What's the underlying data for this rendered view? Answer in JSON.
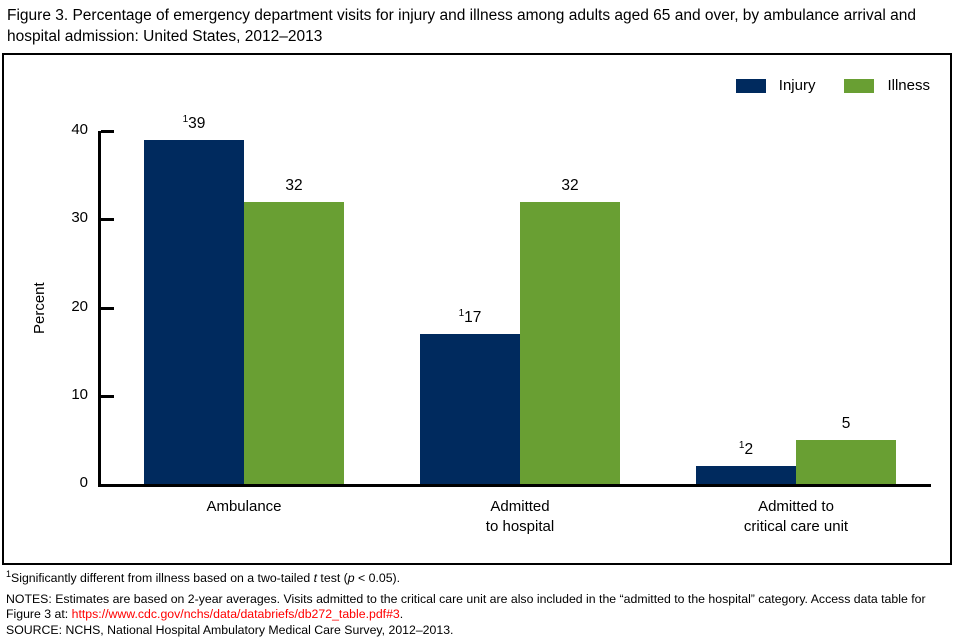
{
  "title": "Figure 3. Percentage of emergency department visits for injury and illness among adults aged 65 and over, by ambulance arrival and hospital admission: United States, 2012–2013",
  "chart_data": {
    "type": "bar",
    "title": "Figure 3. Percentage of emergency department visits for injury and illness among adults aged 65 and over, by ambulance arrival and hospital admission: United States, 2012–2013",
    "categories": [
      "Ambulance",
      "Admitted to hospital",
      "Admitted to critical care unit"
    ],
    "category_label_lines": [
      [
        "Ambulance"
      ],
      [
        "Admitted",
        "to hospital"
      ],
      [
        "Admitted to",
        "critical care unit"
      ]
    ],
    "series": [
      {
        "name": "Injury",
        "color": "#002a5e",
        "values": [
          39,
          17,
          2
        ],
        "value_superscripts": [
          "1",
          "1",
          "1"
        ]
      },
      {
        "name": "Illness",
        "color": "#699f33",
        "values": [
          32,
          32,
          5
        ],
        "value_superscripts": [
          "",
          "",
          ""
        ]
      }
    ],
    "xlabel": "",
    "ylabel": "Percent",
    "ylim": [
      0,
      40
    ],
    "yticks": [
      0,
      10,
      20,
      30,
      40
    ],
    "grid": false,
    "legend_position": "top-right"
  },
  "footnotes": {
    "footnote1": {
      "sup": "1",
      "parts": [
        {
          "text": "Significantly different from illness based on a two-tailed ",
          "italic": false
        },
        {
          "text": "t",
          "italic": true
        },
        {
          "text": " test (",
          "italic": false
        },
        {
          "text": "p",
          "italic": true
        },
        {
          "text": " < 0.05).",
          "italic": false
        }
      ]
    },
    "notes": {
      "before_link": "NOTES: Estimates are based on 2-year averages. Visits admitted to the critical care unit are also included in the “admitted to the hospital” category. Access data table for Figure 3 at: ",
      "link": "https://www.cdc.gov/nchs/data/databriefs/db272_table.pdf#3",
      "after_link": ".",
      "link_color": "#ff0000"
    },
    "source": "SOURCE: NCHS, National Hospital Ambulatory Medical Care Survey, 2012–2013."
  },
  "colors": {
    "injury": "#002a5e",
    "illness": "#699f33",
    "axis": "#000000",
    "link": "#ff0000"
  }
}
